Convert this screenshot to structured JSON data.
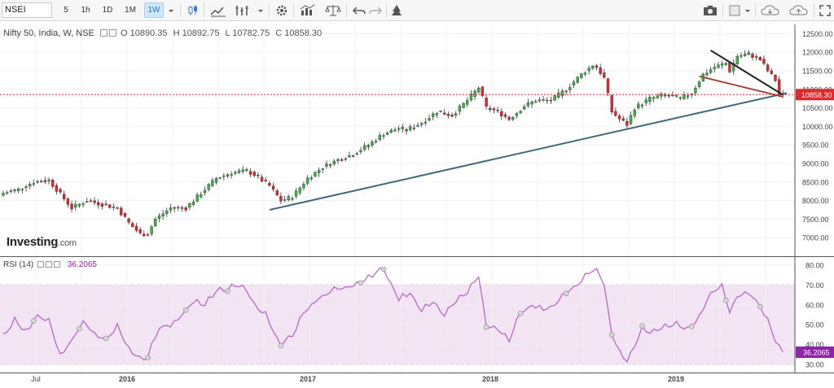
{
  "toolbar": {
    "symbol": "NSEI",
    "intervals": [
      "5",
      "1h",
      "1D",
      "1M",
      "1W"
    ],
    "active_interval": "1W",
    "icons": [
      "interval-dropdown-icon",
      "candles-icon",
      "compare-icon",
      "indicators-icon",
      "indicators-dropdown-icon",
      "settings-gear-icon",
      "templates-icon",
      "balance-icon",
      "undo-icon",
      "redo-icon",
      "alert-icon",
      "camera-icon",
      "color-square-icon",
      "color-dropdown-icon",
      "cloud-download-icon",
      "cloud-upload-icon",
      "fullscreen-icon"
    ]
  },
  "legend": {
    "title": "Nifty 50, India, W, NSE",
    "open": "O 10890.35",
    "high": "H 10892.75",
    "low": "L 10782.75",
    "close": "C 10858.30"
  },
  "rsi_legend": {
    "label": "RSI (14)",
    "value": "36.2065"
  },
  "brand": {
    "name": "Investing",
    "suffix": ".com"
  },
  "colors": {
    "up": "#3fb24a",
    "down": "#e0292c",
    "rsi_line": "#b868c8",
    "rsi_band": "#f3e4f3",
    "trend_main": "#3f6a79",
    "trend_black": "#222222",
    "trend_brown": "#9c4a3a",
    "price_marker": "#e0292c",
    "rsi_marker": "#8e24aa"
  },
  "chart_data": [
    {
      "type": "candlestick",
      "title": "Nifty 50, India, W, NSE",
      "y_ticks": [
        7000,
        7500,
        8000,
        8500,
        9000,
        9500,
        10000,
        10500,
        11000,
        11500,
        12000,
        12500
      ],
      "y_tick_labels": [
        "7000.00",
        "7500.00",
        "8000.00",
        "8500.00",
        "9000.00",
        "9500.00",
        "10000.00",
        "10500.00",
        "11000.00",
        "11500.00",
        "12000.00",
        "12500.00"
      ],
      "ylim": [
        6500,
        12750
      ],
      "last_price": 10858.3,
      "last_price_label": "10858.30",
      "x_labels": [
        "Jul",
        "2016",
        "2017",
        "2018",
        "2019"
      ],
      "anchors": [
        {
          "i": 0,
          "v": 8200
        },
        {
          "i": 4,
          "v": 8300
        },
        {
          "i": 8,
          "v": 8500
        },
        {
          "i": 12,
          "v": 8550
        },
        {
          "i": 14,
          "v": 8300
        },
        {
          "i": 18,
          "v": 7800
        },
        {
          "i": 22,
          "v": 8000
        },
        {
          "i": 26,
          "v": 7900
        },
        {
          "i": 30,
          "v": 7800
        },
        {
          "i": 33,
          "v": 7400
        },
        {
          "i": 36,
          "v": 7100
        },
        {
          "i": 38,
          "v": 7100
        },
        {
          "i": 40,
          "v": 7500
        },
        {
          "i": 44,
          "v": 7800
        },
        {
          "i": 48,
          "v": 7800
        },
        {
          "i": 52,
          "v": 8200
        },
        {
          "i": 56,
          "v": 8600
        },
        {
          "i": 60,
          "v": 8750
        },
        {
          "i": 64,
          "v": 8800
        },
        {
          "i": 66,
          "v": 8700
        },
        {
          "i": 70,
          "v": 8400
        },
        {
          "i": 73,
          "v": 8000
        },
        {
          "i": 76,
          "v": 8100
        },
        {
          "i": 80,
          "v": 8600
        },
        {
          "i": 84,
          "v": 8900
        },
        {
          "i": 88,
          "v": 9100
        },
        {
          "i": 92,
          "v": 9250
        },
        {
          "i": 96,
          "v": 9500
        },
        {
          "i": 100,
          "v": 9800
        },
        {
          "i": 104,
          "v": 9950
        },
        {
          "i": 106,
          "v": 9900
        },
        {
          "i": 110,
          "v": 10100
        },
        {
          "i": 114,
          "v": 10400
        },
        {
          "i": 118,
          "v": 10300
        },
        {
          "i": 122,
          "v": 10700
        },
        {
          "i": 125,
          "v": 11050
        },
        {
          "i": 127,
          "v": 10500
        },
        {
          "i": 130,
          "v": 10400
        },
        {
          "i": 133,
          "v": 10200
        },
        {
          "i": 137,
          "v": 10550
        },
        {
          "i": 140,
          "v": 10700
        },
        {
          "i": 144,
          "v": 10700
        },
        {
          "i": 148,
          "v": 11000
        },
        {
          "i": 152,
          "v": 11400
        },
        {
          "i": 155,
          "v": 11650
        },
        {
          "i": 156,
          "v": 11600
        },
        {
          "i": 158,
          "v": 11300
        },
        {
          "i": 160,
          "v": 10400
        },
        {
          "i": 162,
          "v": 10200
        },
        {
          "i": 164,
          "v": 10050
        },
        {
          "i": 166,
          "v": 10500
        },
        {
          "i": 170,
          "v": 10750
        },
        {
          "i": 174,
          "v": 10850
        },
        {
          "i": 178,
          "v": 10750
        },
        {
          "i": 181,
          "v": 10900
        },
        {
          "i": 184,
          "v": 11400
        },
        {
          "i": 187,
          "v": 11600
        },
        {
          "i": 190,
          "v": 11700
        },
        {
          "i": 191,
          "v": 11500
        },
        {
          "i": 193,
          "v": 11900
        },
        {
          "i": 196,
          "v": 11950
        },
        {
          "i": 199,
          "v": 11800
        },
        {
          "i": 201,
          "v": 11500
        },
        {
          "i": 203,
          "v": 11250
        },
        {
          "i": 204,
          "v": 10860
        }
      ],
      "trendlines": [
        {
          "name": "support",
          "from": [
            70,
            7750
          ],
          "to": [
            206,
            10900
          ],
          "color": "#3f6a79"
        },
        {
          "name": "down",
          "from": [
            186,
            12050
          ],
          "to": [
            205,
            10850
          ],
          "color": "#222222"
        },
        {
          "name": "brown",
          "from": [
            183,
            11350
          ],
          "to": [
            205,
            10800
          ],
          "color": "#9c4a3a"
        }
      ]
    },
    {
      "type": "line",
      "title": "RSI (14)",
      "y_ticks": [
        30,
        40,
        50,
        60,
        70,
        80
      ],
      "y_tick_labels": [
        "30.00",
        "40.00",
        "50.00",
        "60.00",
        "70.00",
        "80.00"
      ],
      "ylim": [
        26,
        84
      ],
      "band": [
        30,
        70
      ],
      "last_value": 36.2065,
      "last_value_label": "36.2065",
      "anchors": [
        {
          "i": 0,
          "v": 44
        },
        {
          "i": 3,
          "v": 52
        },
        {
          "i": 6,
          "v": 46
        },
        {
          "i": 9,
          "v": 55
        },
        {
          "i": 12,
          "v": 52
        },
        {
          "i": 15,
          "v": 35
        },
        {
          "i": 18,
          "v": 42
        },
        {
          "i": 21,
          "v": 52
        },
        {
          "i": 24,
          "v": 46
        },
        {
          "i": 27,
          "v": 42
        },
        {
          "i": 30,
          "v": 50
        },
        {
          "i": 33,
          "v": 38
        },
        {
          "i": 36,
          "v": 33
        },
        {
          "i": 38,
          "v": 34
        },
        {
          "i": 41,
          "v": 49
        },
        {
          "i": 44,
          "v": 50
        },
        {
          "i": 47,
          "v": 55
        },
        {
          "i": 50,
          "v": 62
        },
        {
          "i": 53,
          "v": 60
        },
        {
          "i": 56,
          "v": 67
        },
        {
          "i": 59,
          "v": 68
        },
        {
          "i": 62,
          "v": 70
        },
        {
          "i": 64,
          "v": 67
        },
        {
          "i": 66,
          "v": 60
        },
        {
          "i": 69,
          "v": 55
        },
        {
          "i": 71,
          "v": 47
        },
        {
          "i": 73,
          "v": 40
        },
        {
          "i": 76,
          "v": 45
        },
        {
          "i": 79,
          "v": 56
        },
        {
          "i": 82,
          "v": 62
        },
        {
          "i": 85,
          "v": 66
        },
        {
          "i": 88,
          "v": 68
        },
        {
          "i": 91,
          "v": 69
        },
        {
          "i": 94,
          "v": 72
        },
        {
          "i": 97,
          "v": 75
        },
        {
          "i": 100,
          "v": 79
        },
        {
          "i": 102,
          "v": 70
        },
        {
          "i": 104,
          "v": 63
        },
        {
          "i": 107,
          "v": 66
        },
        {
          "i": 110,
          "v": 57
        },
        {
          "i": 113,
          "v": 62
        },
        {
          "i": 116,
          "v": 55
        },
        {
          "i": 119,
          "v": 62
        },
        {
          "i": 122,
          "v": 66
        },
        {
          "i": 125,
          "v": 75
        },
        {
          "i": 127,
          "v": 50
        },
        {
          "i": 130,
          "v": 48
        },
        {
          "i": 133,
          "v": 42
        },
        {
          "i": 136,
          "v": 56
        },
        {
          "i": 139,
          "v": 60
        },
        {
          "i": 142,
          "v": 58
        },
        {
          "i": 145,
          "v": 60
        },
        {
          "i": 148,
          "v": 66
        },
        {
          "i": 151,
          "v": 70
        },
        {
          "i": 154,
          "v": 76
        },
        {
          "i": 156,
          "v": 78
        },
        {
          "i": 158,
          "v": 70
        },
        {
          "i": 160,
          "v": 45
        },
        {
          "i": 162,
          "v": 36
        },
        {
          "i": 164,
          "v": 32
        },
        {
          "i": 166,
          "v": 40
        },
        {
          "i": 168,
          "v": 48
        },
        {
          "i": 171,
          "v": 46
        },
        {
          "i": 174,
          "v": 50
        },
        {
          "i": 177,
          "v": 50
        },
        {
          "i": 180,
          "v": 48
        },
        {
          "i": 183,
          "v": 54
        },
        {
          "i": 186,
          "v": 66
        },
        {
          "i": 189,
          "v": 69
        },
        {
          "i": 191,
          "v": 56
        },
        {
          "i": 193,
          "v": 65
        },
        {
          "i": 196,
          "v": 66
        },
        {
          "i": 199,
          "v": 60
        },
        {
          "i": 201,
          "v": 52
        },
        {
          "i": 203,
          "v": 42
        },
        {
          "i": 205,
          "v": 36.2
        }
      ]
    }
  ]
}
